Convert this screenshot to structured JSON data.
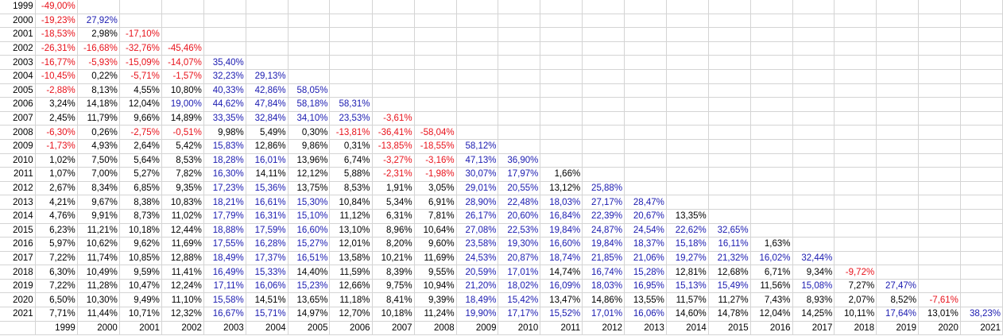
{
  "colors": {
    "negative": "#e8121b",
    "strong_positive": "#1a1ab0",
    "normal": "#000000",
    "grid": "#d4d4d4"
  },
  "column_labels": [
    "1999",
    "2000",
    "2001",
    "2002",
    "2003",
    "2004",
    "2005",
    "2006",
    "2007",
    "2008",
    "2009",
    "2010",
    "2011",
    "2012",
    "2013",
    "2014",
    "2015",
    "2016",
    "2017",
    "2018",
    "2019",
    "2020",
    "2021"
  ],
  "rows": [
    {
      "year": "1999",
      "cells": [
        [
          "-49,00%",
          "neg"
        ]
      ]
    },
    {
      "year": "2000",
      "cells": [
        [
          "-19,23%",
          "neg"
        ],
        [
          "27,92%",
          "pos"
        ]
      ]
    },
    {
      "year": "2001",
      "cells": [
        [
          "-18,53%",
          "neg"
        ],
        [
          "2,98%",
          "norm"
        ],
        [
          "-17,10%",
          "neg"
        ]
      ]
    },
    {
      "year": "2002",
      "cells": [
        [
          "-26,31%",
          "neg"
        ],
        [
          "-16,68%",
          "neg"
        ],
        [
          "-32,76%",
          "neg"
        ],
        [
          "-45,46%",
          "neg"
        ]
      ]
    },
    {
      "year": "2003",
      "cells": [
        [
          "-16,77%",
          "neg"
        ],
        [
          "-5,93%",
          "neg"
        ],
        [
          "-15,09%",
          "neg"
        ],
        [
          "-14,07%",
          "neg"
        ],
        [
          "35,40%",
          "pos"
        ]
      ]
    },
    {
      "year": "2004",
      "cells": [
        [
          "-10,45%",
          "neg"
        ],
        [
          "0,22%",
          "norm"
        ],
        [
          "-5,71%",
          "neg"
        ],
        [
          "-1,57%",
          "neg"
        ],
        [
          "32,23%",
          "pos"
        ],
        [
          "29,13%",
          "pos"
        ]
      ]
    },
    {
      "year": "2005",
      "cells": [
        [
          "-2,88%",
          "neg"
        ],
        [
          "8,13%",
          "norm"
        ],
        [
          "4,55%",
          "norm"
        ],
        [
          "10,80%",
          "norm"
        ],
        [
          "40,33%",
          "pos"
        ],
        [
          "42,86%",
          "pos"
        ],
        [
          "58,05%",
          "pos"
        ]
      ]
    },
    {
      "year": "2006",
      "cells": [
        [
          "3,24%",
          "norm"
        ],
        [
          "14,18%",
          "norm"
        ],
        [
          "12,04%",
          "norm"
        ],
        [
          "19,00%",
          "pos"
        ],
        [
          "44,62%",
          "pos"
        ],
        [
          "47,84%",
          "pos"
        ],
        [
          "58,18%",
          "pos"
        ],
        [
          "58,31%",
          "pos"
        ]
      ]
    },
    {
      "year": "2007",
      "cells": [
        [
          "2,45%",
          "norm"
        ],
        [
          "11,79%",
          "norm"
        ],
        [
          "9,66%",
          "norm"
        ],
        [
          "14,89%",
          "norm"
        ],
        [
          "33,35%",
          "pos"
        ],
        [
          "32,84%",
          "pos"
        ],
        [
          "34,10%",
          "pos"
        ],
        [
          "23,53%",
          "pos"
        ],
        [
          "-3,61%",
          "neg"
        ]
      ]
    },
    {
      "year": "2008",
      "cells": [
        [
          "-6,30%",
          "neg"
        ],
        [
          "0,26%",
          "norm"
        ],
        [
          "-2,75%",
          "neg"
        ],
        [
          "-0,51%",
          "neg"
        ],
        [
          "9,98%",
          "norm"
        ],
        [
          "5,49%",
          "norm"
        ],
        [
          "0,30%",
          "norm"
        ],
        [
          "-13,81%",
          "neg"
        ],
        [
          "-36,41%",
          "neg"
        ],
        [
          "-58,04%",
          "neg"
        ]
      ]
    },
    {
      "year": "2009",
      "cells": [
        [
          "-1,73%",
          "neg"
        ],
        [
          "4,93%",
          "norm"
        ],
        [
          "2,64%",
          "norm"
        ],
        [
          "5,42%",
          "norm"
        ],
        [
          "15,83%",
          "pos"
        ],
        [
          "12,86%",
          "norm"
        ],
        [
          "9,86%",
          "norm"
        ],
        [
          "0,31%",
          "norm"
        ],
        [
          "-13,85%",
          "neg"
        ],
        [
          "-18,55%",
          "neg"
        ],
        [
          "58,12%",
          "pos"
        ]
      ]
    },
    {
      "year": "2010",
      "cells": [
        [
          "1,02%",
          "norm"
        ],
        [
          "7,50%",
          "norm"
        ],
        [
          "5,64%",
          "norm"
        ],
        [
          "8,53%",
          "norm"
        ],
        [
          "18,28%",
          "pos"
        ],
        [
          "16,01%",
          "pos"
        ],
        [
          "13,96%",
          "norm"
        ],
        [
          "6,74%",
          "norm"
        ],
        [
          "-3,27%",
          "neg"
        ],
        [
          "-3,16%",
          "neg"
        ],
        [
          "47,13%",
          "pos"
        ],
        [
          "36,90%",
          "pos"
        ]
      ]
    },
    {
      "year": "2011",
      "cells": [
        [
          "1,07%",
          "norm"
        ],
        [
          "7,00%",
          "norm"
        ],
        [
          "5,27%",
          "norm"
        ],
        [
          "7,82%",
          "norm"
        ],
        [
          "16,30%",
          "pos"
        ],
        [
          "14,11%",
          "norm"
        ],
        [
          "12,12%",
          "norm"
        ],
        [
          "5,88%",
          "norm"
        ],
        [
          "-2,31%",
          "neg"
        ],
        [
          "-1,98%",
          "neg"
        ],
        [
          "30,07%",
          "pos"
        ],
        [
          "17,97%",
          "pos"
        ],
        [
          "1,66%",
          "norm"
        ]
      ]
    },
    {
      "year": "2012",
      "cells": [
        [
          "2,67%",
          "norm"
        ],
        [
          "8,34%",
          "norm"
        ],
        [
          "6,85%",
          "norm"
        ],
        [
          "9,35%",
          "norm"
        ],
        [
          "17,23%",
          "pos"
        ],
        [
          "15,36%",
          "pos"
        ],
        [
          "13,75%",
          "norm"
        ],
        [
          "8,53%",
          "norm"
        ],
        [
          "1,91%",
          "norm"
        ],
        [
          "3,05%",
          "norm"
        ],
        [
          "29,01%",
          "pos"
        ],
        [
          "20,55%",
          "pos"
        ],
        [
          "13,12%",
          "norm"
        ],
        [
          "25,88%",
          "pos"
        ]
      ]
    },
    {
      "year": "2013",
      "cells": [
        [
          "4,21%",
          "norm"
        ],
        [
          "9,67%",
          "norm"
        ],
        [
          "8,38%",
          "norm"
        ],
        [
          "10,83%",
          "norm"
        ],
        [
          "18,21%",
          "pos"
        ],
        [
          "16,61%",
          "pos"
        ],
        [
          "15,30%",
          "pos"
        ],
        [
          "10,84%",
          "norm"
        ],
        [
          "5,34%",
          "norm"
        ],
        [
          "6,91%",
          "norm"
        ],
        [
          "28,90%",
          "pos"
        ],
        [
          "22,48%",
          "pos"
        ],
        [
          "18,03%",
          "pos"
        ],
        [
          "27,17%",
          "pos"
        ],
        [
          "28,47%",
          "pos"
        ]
      ]
    },
    {
      "year": "2014",
      "cells": [
        [
          "4,76%",
          "norm"
        ],
        [
          "9,91%",
          "norm"
        ],
        [
          "8,73%",
          "norm"
        ],
        [
          "11,02%",
          "norm"
        ],
        [
          "17,79%",
          "pos"
        ],
        [
          "16,31%",
          "pos"
        ],
        [
          "15,10%",
          "pos"
        ],
        [
          "11,12%",
          "norm"
        ],
        [
          "6,31%",
          "norm"
        ],
        [
          "7,81%",
          "norm"
        ],
        [
          "26,17%",
          "pos"
        ],
        [
          "20,60%",
          "pos"
        ],
        [
          "16,84%",
          "pos"
        ],
        [
          "22,39%",
          "pos"
        ],
        [
          "20,67%",
          "pos"
        ],
        [
          "13,35%",
          "norm"
        ]
      ]
    },
    {
      "year": "2015",
      "cells": [
        [
          "6,23%",
          "norm"
        ],
        [
          "11,21%",
          "norm"
        ],
        [
          "10,18%",
          "norm"
        ],
        [
          "12,44%",
          "norm"
        ],
        [
          "18,88%",
          "pos"
        ],
        [
          "17,59%",
          "pos"
        ],
        [
          "16,60%",
          "pos"
        ],
        [
          "13,10%",
          "norm"
        ],
        [
          "8,96%",
          "norm"
        ],
        [
          "10,64%",
          "norm"
        ],
        [
          "27,08%",
          "pos"
        ],
        [
          "22,53%",
          "pos"
        ],
        [
          "19,84%",
          "pos"
        ],
        [
          "24,87%",
          "pos"
        ],
        [
          "24,54%",
          "pos"
        ],
        [
          "22,62%",
          "pos"
        ],
        [
          "32,65%",
          "pos"
        ]
      ]
    },
    {
      "year": "2016",
      "cells": [
        [
          "5,97%",
          "norm"
        ],
        [
          "10,62%",
          "norm"
        ],
        [
          "9,62%",
          "norm"
        ],
        [
          "11,69%",
          "norm"
        ],
        [
          "17,55%",
          "pos"
        ],
        [
          "16,28%",
          "pos"
        ],
        [
          "15,27%",
          "pos"
        ],
        [
          "12,01%",
          "norm"
        ],
        [
          "8,20%",
          "norm"
        ],
        [
          "9,60%",
          "norm"
        ],
        [
          "23,58%",
          "pos"
        ],
        [
          "19,30%",
          "pos"
        ],
        [
          "16,60%",
          "pos"
        ],
        [
          "19,84%",
          "pos"
        ],
        [
          "18,37%",
          "pos"
        ],
        [
          "15,18%",
          "pos"
        ],
        [
          "16,11%",
          "pos"
        ],
        [
          "1,63%",
          "norm"
        ]
      ]
    },
    {
      "year": "2017",
      "cells": [
        [
          "7,22%",
          "norm"
        ],
        [
          "11,74%",
          "norm"
        ],
        [
          "10,85%",
          "norm"
        ],
        [
          "12,88%",
          "norm"
        ],
        [
          "18,49%",
          "pos"
        ],
        [
          "17,37%",
          "pos"
        ],
        [
          "16,51%",
          "pos"
        ],
        [
          "13,58%",
          "norm"
        ],
        [
          "10,21%",
          "norm"
        ],
        [
          "11,69%",
          "norm"
        ],
        [
          "24,53%",
          "pos"
        ],
        [
          "20,87%",
          "pos"
        ],
        [
          "18,74%",
          "pos"
        ],
        [
          "21,85%",
          "pos"
        ],
        [
          "21,06%",
          "pos"
        ],
        [
          "19,27%",
          "pos"
        ],
        [
          "21,32%",
          "pos"
        ],
        [
          "16,02%",
          "pos"
        ],
        [
          "32,44%",
          "pos"
        ]
      ]
    },
    {
      "year": "2018",
      "cells": [
        [
          "6,30%",
          "norm"
        ],
        [
          "10,49%",
          "norm"
        ],
        [
          "9,59%",
          "norm"
        ],
        [
          "11,41%",
          "norm"
        ],
        [
          "16,49%",
          "pos"
        ],
        [
          "15,33%",
          "pos"
        ],
        [
          "14,40%",
          "norm"
        ],
        [
          "11,59%",
          "norm"
        ],
        [
          "8,39%",
          "norm"
        ],
        [
          "9,55%",
          "norm"
        ],
        [
          "20,59%",
          "pos"
        ],
        [
          "17,01%",
          "pos"
        ],
        [
          "14,74%",
          "norm"
        ],
        [
          "16,74%",
          "pos"
        ],
        [
          "15,28%",
          "pos"
        ],
        [
          "12,81%",
          "norm"
        ],
        [
          "12,68%",
          "norm"
        ],
        [
          "6,71%",
          "norm"
        ],
        [
          "9,34%",
          "norm"
        ],
        [
          "-9,72%",
          "neg"
        ]
      ]
    },
    {
      "year": "2019",
      "cells": [
        [
          "7,22%",
          "norm"
        ],
        [
          "11,28%",
          "norm"
        ],
        [
          "10,47%",
          "norm"
        ],
        [
          "12,24%",
          "norm"
        ],
        [
          "17,11%",
          "pos"
        ],
        [
          "16,06%",
          "pos"
        ],
        [
          "15,23%",
          "pos"
        ],
        [
          "12,66%",
          "norm"
        ],
        [
          "9,75%",
          "norm"
        ],
        [
          "10,94%",
          "norm"
        ],
        [
          "21,20%",
          "pos"
        ],
        [
          "18,02%",
          "pos"
        ],
        [
          "16,09%",
          "pos"
        ],
        [
          "18,03%",
          "pos"
        ],
        [
          "16,95%",
          "pos"
        ],
        [
          "15,13%",
          "pos"
        ],
        [
          "15,49%",
          "pos"
        ],
        [
          "11,56%",
          "norm"
        ],
        [
          "15,08%",
          "pos"
        ],
        [
          "7,27%",
          "norm"
        ],
        [
          "27,47%",
          "pos"
        ]
      ]
    },
    {
      "year": "2020",
      "cells": [
        [
          "6,50%",
          "norm"
        ],
        [
          "10,30%",
          "norm"
        ],
        [
          "9,49%",
          "norm"
        ],
        [
          "11,10%",
          "norm"
        ],
        [
          "15,58%",
          "pos"
        ],
        [
          "14,51%",
          "norm"
        ],
        [
          "13,65%",
          "norm"
        ],
        [
          "11,18%",
          "norm"
        ],
        [
          "8,41%",
          "norm"
        ],
        [
          "9,39%",
          "norm"
        ],
        [
          "18,49%",
          "pos"
        ],
        [
          "15,42%",
          "pos"
        ],
        [
          "13,47%",
          "norm"
        ],
        [
          "14,86%",
          "norm"
        ],
        [
          "13,55%",
          "norm"
        ],
        [
          "11,57%",
          "norm"
        ],
        [
          "11,27%",
          "norm"
        ],
        [
          "7,43%",
          "norm"
        ],
        [
          "8,93%",
          "norm"
        ],
        [
          "2,07%",
          "norm"
        ],
        [
          "8,52%",
          "norm"
        ],
        [
          "-7,61%",
          "neg"
        ]
      ]
    },
    {
      "year": "2021",
      "cells": [
        [
          "7,71%",
          "norm"
        ],
        [
          "11,44%",
          "norm"
        ],
        [
          "10,71%",
          "norm"
        ],
        [
          "12,32%",
          "norm"
        ],
        [
          "16,67%",
          "pos"
        ],
        [
          "15,71%",
          "pos"
        ],
        [
          "14,97%",
          "norm"
        ],
        [
          "12,70%",
          "norm"
        ],
        [
          "10,18%",
          "norm"
        ],
        [
          "11,24%",
          "norm"
        ],
        [
          "19,90%",
          "pos"
        ],
        [
          "17,17%",
          "pos"
        ],
        [
          "15,52%",
          "pos"
        ],
        [
          "17,01%",
          "pos"
        ],
        [
          "16,06%",
          "pos"
        ],
        [
          "14,60%",
          "norm"
        ],
        [
          "14,78%",
          "norm"
        ],
        [
          "12,04%",
          "norm"
        ],
        [
          "14,25%",
          "norm"
        ],
        [
          "10,11%",
          "norm"
        ],
        [
          "17,64%",
          "pos"
        ],
        [
          "13,01%",
          "norm"
        ],
        [
          "38,23%",
          "pos"
        ]
      ]
    }
  ]
}
